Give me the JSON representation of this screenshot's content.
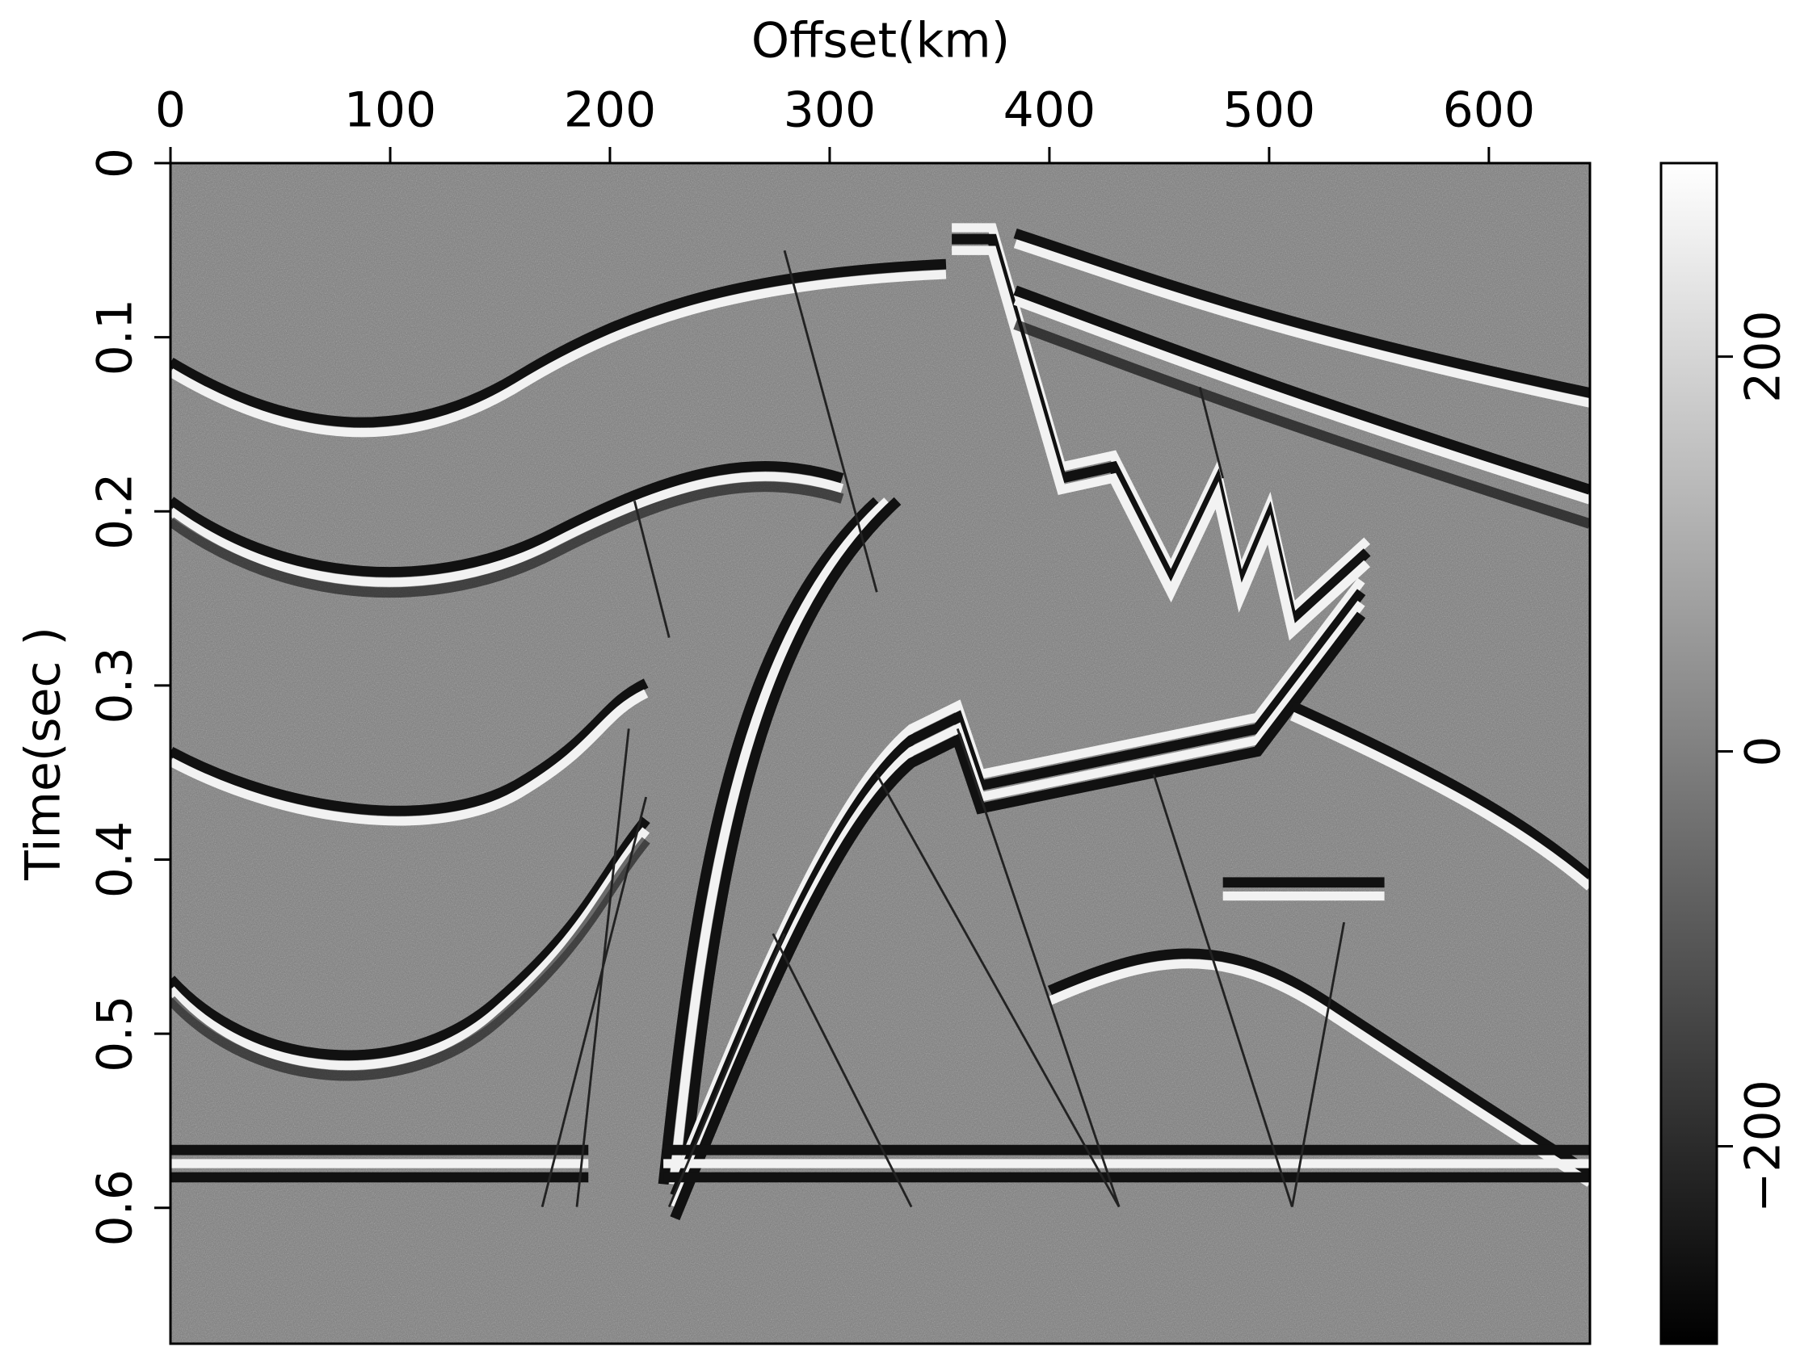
{
  "chart_data": {
    "type": "image",
    "x_label": "Offset(km)",
    "x_axis_position": "top",
    "y_label": "Time(sec )",
    "xlim": [
      0,
      646
    ],
    "xticks": [
      0,
      100,
      200,
      300,
      400,
      500,
      600
    ],
    "ylim": [
      0,
      0.678
    ],
    "y_inverted": true,
    "yticks": [
      0,
      0.1,
      0.2,
      0.3,
      0.4,
      0.5,
      0.6
    ],
    "colormap": "gray",
    "colorbar": {
      "clim": [
        -300,
        298
      ],
      "ticks": [
        {
          "value": -200,
          "label": "−200"
        },
        0,
        200
      ]
    }
  }
}
